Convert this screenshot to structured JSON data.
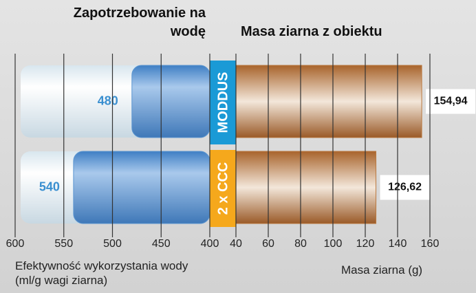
{
  "chart_data": [
    {
      "type": "bar",
      "orientation": "horizontal",
      "title": "Zapotrzebowanie na wodę",
      "xlabel": "Efektywność wykorzystania wody (ml/g wagi ziarna)",
      "values": [
        480,
        540
      ],
      "color": "#5b95d0",
      "label_color": "#3a8fd0",
      "xlim": [
        600,
        400
      ],
      "xticks": [
        600,
        550,
        500,
        450,
        400
      ],
      "grid": true
    },
    {
      "type": "bar",
      "orientation": "horizontal",
      "title": "Masa ziarna z obiektu",
      "xlabel": "Masa ziarna (g)",
      "categories": [
        "MODDUS",
        "2 x CCC"
      ],
      "category_colors": [
        "#1a9ad6",
        "#f5a81c"
      ],
      "values": [
        154.94,
        126.62
      ],
      "value_labels": [
        "154,94",
        "126,62"
      ],
      "color": "#b9783f",
      "xlim": [
        40,
        160
      ],
      "xticks": [
        40,
        60,
        80,
        100,
        120,
        140,
        160
      ],
      "grid": true
    }
  ]
}
